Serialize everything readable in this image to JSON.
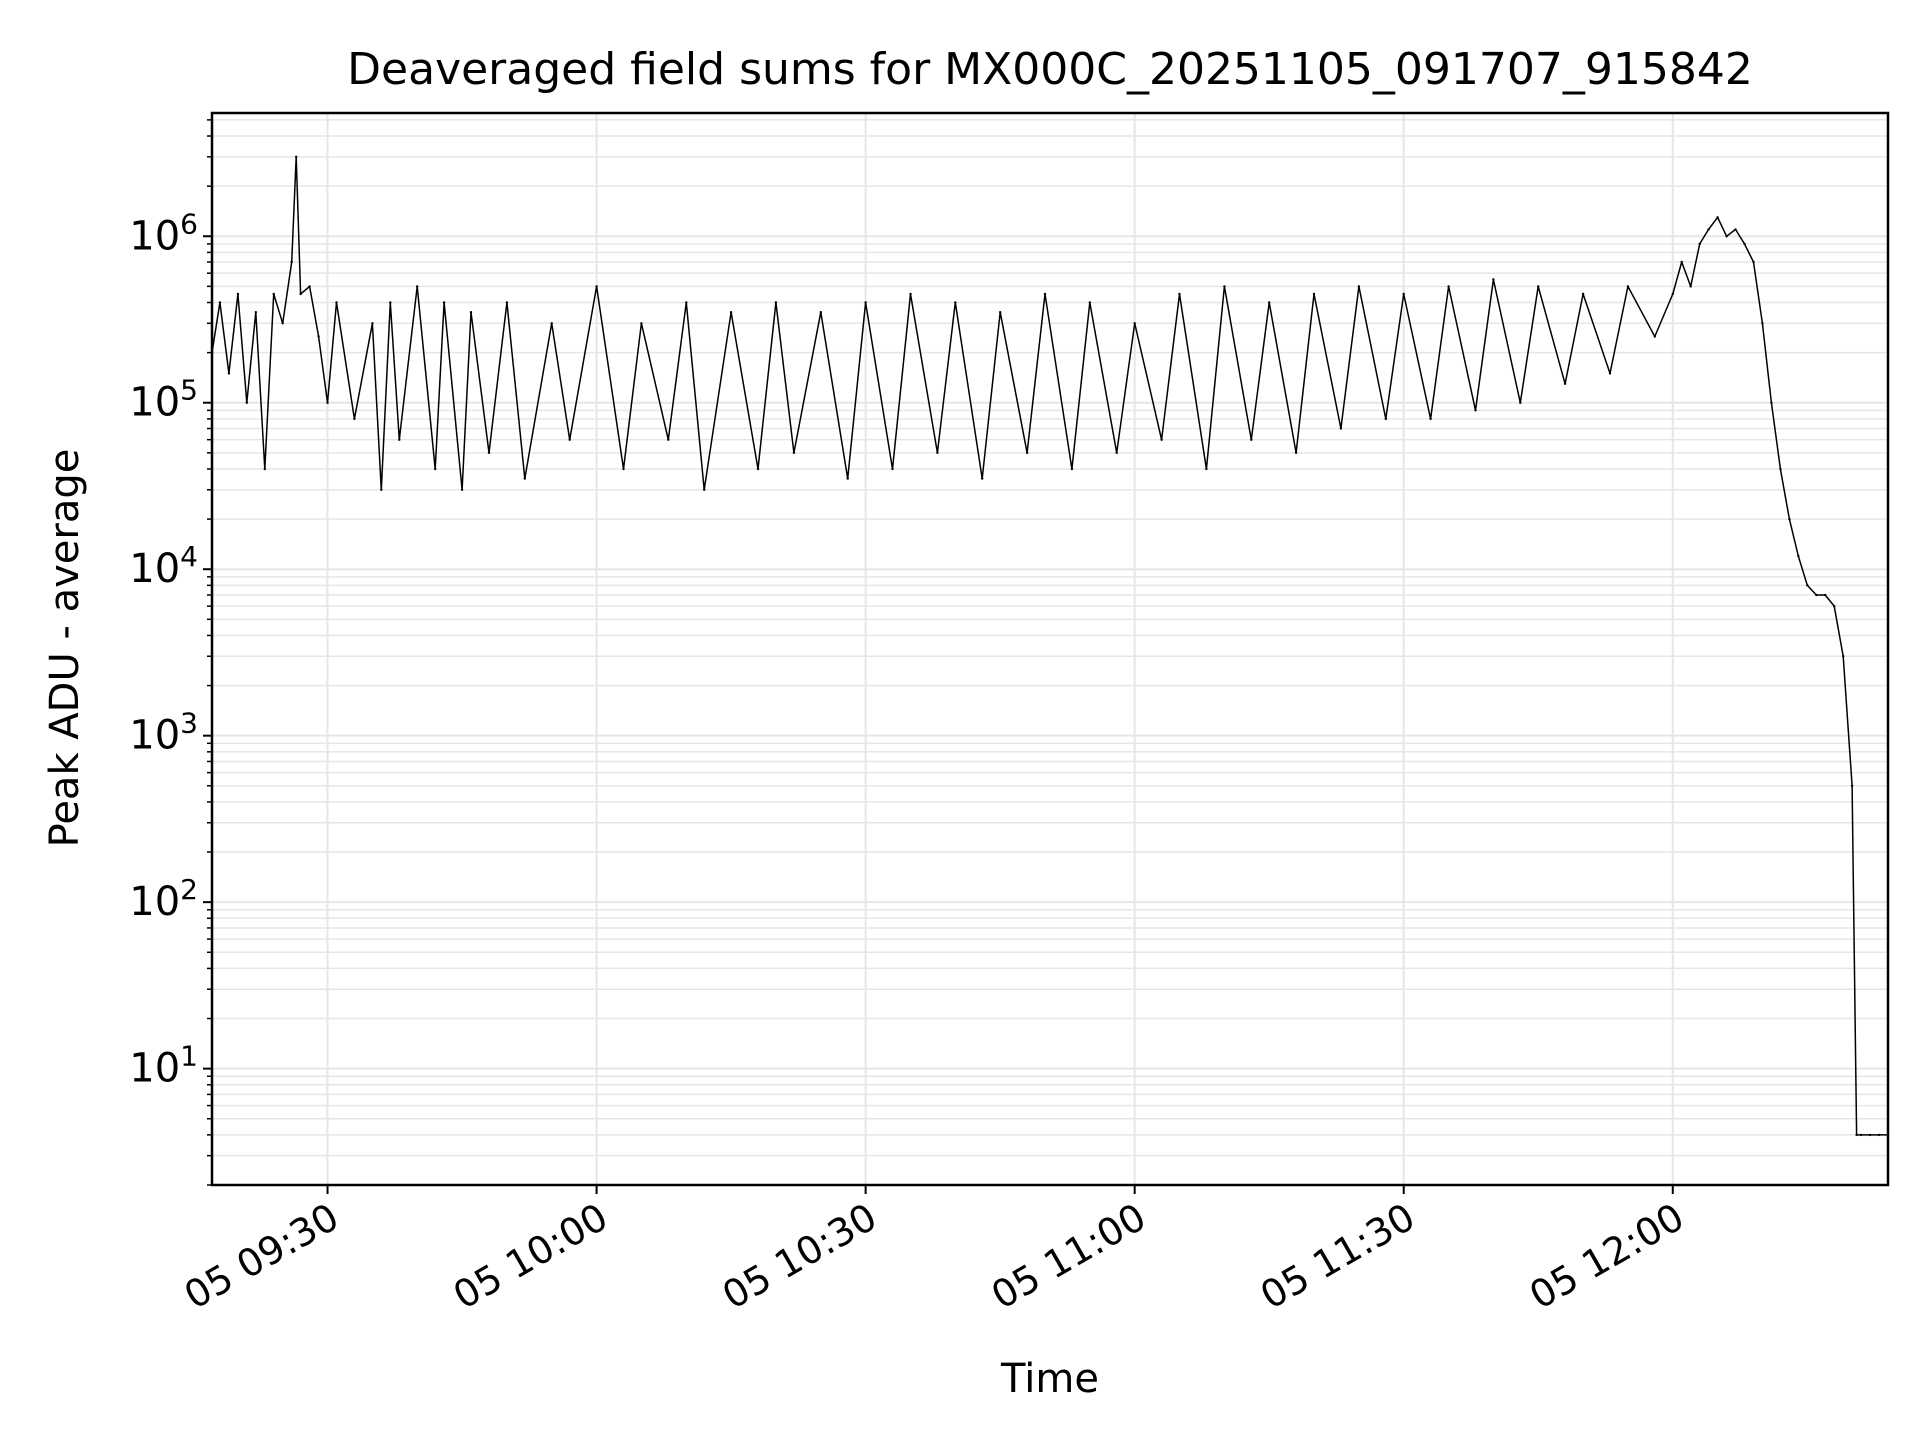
{
  "chart_data": {
    "type": "line",
    "title": "Deaveraged field sums for MX000C_20251105_091707_915842",
    "xlabel": "Time",
    "ylabel": "Peak ADU - average",
    "y_scale": "log",
    "grid": true,
    "legend": "none",
    "line_color": "#000000",
    "grid_color": "#e6e6e6",
    "xlim": [
      "2025-11-05 09:17:07",
      "2025-11-05 12:24:00"
    ],
    "ylim": [
      2,
      5500000
    ],
    "x_ticks": [
      {
        "value": "2025-11-05 09:30",
        "label": "05 09:30"
      },
      {
        "value": "2025-11-05 10:00",
        "label": "05 10:00"
      },
      {
        "value": "2025-11-05 10:30",
        "label": "05 10:30"
      },
      {
        "value": "2025-11-05 11:00",
        "label": "05 11:00"
      },
      {
        "value": "2025-11-05 11:30",
        "label": "05 11:30"
      },
      {
        "value": "2025-11-05 12:00",
        "label": "05 12:00"
      }
    ],
    "y_ticks": [
      {
        "value": 10,
        "base": "10",
        "exp": "1"
      },
      {
        "value": 100,
        "base": "10",
        "exp": "2"
      },
      {
        "value": 1000,
        "base": "10",
        "exp": "3"
      },
      {
        "value": 10000,
        "base": "10",
        "exp": "4"
      },
      {
        "value": 100000,
        "base": "10",
        "exp": "5"
      },
      {
        "value": 1000000,
        "base": "10",
        "exp": "6"
      }
    ],
    "series": [
      {
        "x": [
          "2025-11-05 09:17:07",
          "2025-11-05 09:18:00",
          "2025-11-05 09:19:00",
          "2025-11-05 09:20:00",
          "2025-11-05 09:21:00",
          "2025-11-05 09:22:00",
          "2025-11-05 09:23:00",
          "2025-11-05 09:24:00",
          "2025-11-05 09:25:00",
          "2025-11-05 09:26:00",
          "2025-11-05 09:26:30",
          "2025-11-05 09:27:00",
          "2025-11-05 09:28:00",
          "2025-11-05 09:29:00",
          "2025-11-05 09:30:00",
          "2025-11-05 09:31:00",
          "2025-11-05 09:33:00",
          "2025-11-05 09:35:00",
          "2025-11-05 09:36:00",
          "2025-11-05 09:37:00",
          "2025-11-05 09:38:00",
          "2025-11-05 09:40:00",
          "2025-11-05 09:42:00",
          "2025-11-05 09:43:00",
          "2025-11-05 09:45:00",
          "2025-11-05 09:46:00",
          "2025-11-05 09:48:00",
          "2025-11-05 09:50:00",
          "2025-11-05 09:52:00",
          "2025-11-05 09:55:00",
          "2025-11-05 09:57:00",
          "2025-11-05 10:00:00",
          "2025-11-05 10:03:00",
          "2025-11-05 10:05:00",
          "2025-11-05 10:08:00",
          "2025-11-05 10:10:00",
          "2025-11-05 10:12:00",
          "2025-11-05 10:15:00",
          "2025-11-05 10:18:00",
          "2025-11-05 10:20:00",
          "2025-11-05 10:22:00",
          "2025-11-05 10:25:00",
          "2025-11-05 10:28:00",
          "2025-11-05 10:30:00",
          "2025-11-05 10:33:00",
          "2025-11-05 10:35:00",
          "2025-11-05 10:38:00",
          "2025-11-05 10:40:00",
          "2025-11-05 10:43:00",
          "2025-11-05 10:45:00",
          "2025-11-05 10:48:00",
          "2025-11-05 10:50:00",
          "2025-11-05 10:53:00",
          "2025-11-05 10:55:00",
          "2025-11-05 10:58:00",
          "2025-11-05 11:00:00",
          "2025-11-05 11:03:00",
          "2025-11-05 11:05:00",
          "2025-11-05 11:08:00",
          "2025-11-05 11:10:00",
          "2025-11-05 11:13:00",
          "2025-11-05 11:15:00",
          "2025-11-05 11:18:00",
          "2025-11-05 11:20:00",
          "2025-11-05 11:23:00",
          "2025-11-05 11:25:00",
          "2025-11-05 11:28:00",
          "2025-11-05 11:30:00",
          "2025-11-05 11:33:00",
          "2025-11-05 11:35:00",
          "2025-11-05 11:38:00",
          "2025-11-05 11:40:00",
          "2025-11-05 11:43:00",
          "2025-11-05 11:45:00",
          "2025-11-05 11:48:00",
          "2025-11-05 11:50:00",
          "2025-11-05 11:53:00",
          "2025-11-05 11:55:00",
          "2025-11-05 11:58:00",
          "2025-11-05 12:00:00",
          "2025-11-05 12:01:00",
          "2025-11-05 12:02:00",
          "2025-11-05 12:03:00",
          "2025-11-05 12:04:00",
          "2025-11-05 12:05:00",
          "2025-11-05 12:06:00",
          "2025-11-05 12:07:00",
          "2025-11-05 12:08:00",
          "2025-11-05 12:09:00",
          "2025-11-05 12:10:00",
          "2025-11-05 12:11:00",
          "2025-11-05 12:12:00",
          "2025-11-05 12:13:00",
          "2025-11-05 12:14:00",
          "2025-11-05 12:15:00",
          "2025-11-05 12:16:00",
          "2025-11-05 12:17:00",
          "2025-11-05 12:18:00",
          "2025-11-05 12:19:00",
          "2025-11-05 12:20:00",
          "2025-11-05 12:20:30",
          "2025-11-05 12:21:00",
          "2025-11-05 12:22:00",
          "2025-11-05 12:23:00",
          "2025-11-05 12:24:00"
        ],
        "values": [
          200000,
          400000,
          150000,
          450000,
          100000,
          350000,
          40000,
          450000,
          300000,
          700000,
          3000000,
          450000,
          500000,
          250000,
          100000,
          400000,
          80000,
          300000,
          30000,
          400000,
          60000,
          500000,
          40000,
          400000,
          30000,
          350000,
          50000,
          400000,
          35000,
          300000,
          60000,
          500000,
          40000,
          300000,
          60000,
          400000,
          30000,
          350000,
          40000,
          400000,
          50000,
          350000,
          35000,
          400000,
          40000,
          450000,
          50000,
          400000,
          35000,
          350000,
          50000,
          450000,
          40000,
          400000,
          50000,
          300000,
          60000,
          450000,
          40000,
          500000,
          60000,
          400000,
          50000,
          450000,
          70000,
          500000,
          80000,
          450000,
          80000,
          500000,
          90000,
          550000,
          100000,
          500000,
          130000,
          450000,
          150000,
          500000,
          250000,
          450000,
          700000,
          500000,
          900000,
          1100000,
          1300000,
          1000000,
          1100000,
          900000,
          700000,
          300000,
          100000,
          40000,
          20000,
          12000,
          8000,
          7000,
          7000,
          6000,
          3000,
          500,
          4,
          4,
          4,
          4,
          4
        ]
      }
    ]
  }
}
